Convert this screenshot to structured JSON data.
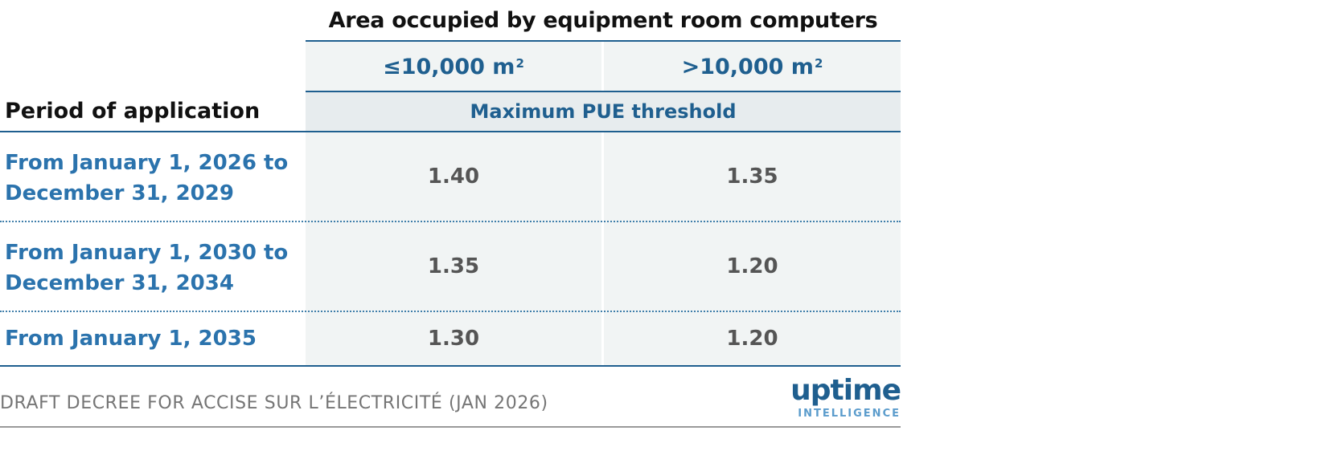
{
  "table": {
    "super_header": "Area occupied by equipment room computers",
    "columns": [
      {
        "label": "≤10,000 m",
        "sup": "2"
      },
      {
        "label": ">10,000 m",
        "sup": "2"
      }
    ],
    "period_header": "Period of application",
    "subheader": "Maximum PUE threshold",
    "rows": [
      {
        "period_line1": "From January 1, 2026 to",
        "period_line2": "December 31, 2029",
        "values": [
          "1.40",
          "1.35"
        ]
      },
      {
        "period_line1": "From January 1, 2030 to",
        "period_line2": "December 31, 2034",
        "values": [
          "1.35",
          "1.20"
        ]
      },
      {
        "period_line1": "From January 1, 2035",
        "period_line2": "",
        "values": [
          "1.30",
          "1.20"
        ]
      }
    ]
  },
  "footer": {
    "source": "DRAFT DECREE FOR ACCISE SUR L’ÉLECTRICITÉ (JAN 2026)",
    "logo_word": "uptime",
    "logo_sub": "INTELLIGENCE"
  },
  "colors": {
    "accent": "#1f5f8f",
    "row_label": "#2b73ad",
    "cell_value": "#555555",
    "shade": "#f1f4f4"
  }
}
